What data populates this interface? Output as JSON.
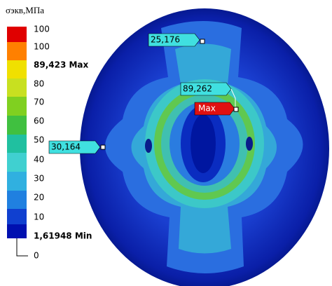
{
  "legend": {
    "title": "σэкв,МПа",
    "labels": [
      "100",
      "100",
      "89,423 Max",
      "80",
      "70",
      "60",
      "50",
      "40",
      "30",
      "20",
      "10",
      "1,61948 Min",
      "0"
    ]
  },
  "callouts": [
    "25,176",
    "89,262",
    "Max",
    "30,164"
  ]
}
